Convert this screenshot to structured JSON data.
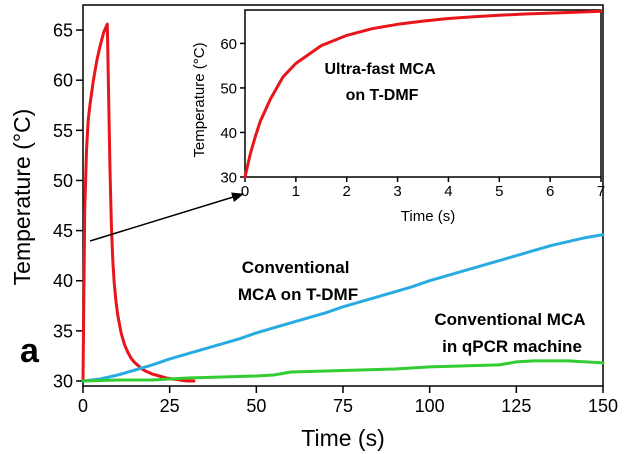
{
  "chart_data": [
    {
      "type": "line",
      "panel_label": "a",
      "xlabel": "Time (s)",
      "ylabel": "Temperature (°C)",
      "xlim": [
        0,
        150
      ],
      "ylim": [
        29.5,
        67.5
      ],
      "xticks": [
        0,
        25,
        50,
        75,
        100,
        125,
        150
      ],
      "yticks": [
        30,
        35,
        40,
        45,
        50,
        55,
        60,
        65
      ],
      "grid": false,
      "legend": "none",
      "annotations": [
        {
          "text_lines": [
            "Conventional",
            "MCA on T-DMF"
          ],
          "color": "#000000"
        },
        {
          "text_lines": [
            "Conventional MCA",
            "in qPCR machine"
          ],
          "color": "#000000"
        }
      ],
      "series": [
        {
          "color": "#e8151b",
          "x": [
            0,
            0.5,
            1,
            1.5,
            2,
            3,
            4,
            5,
            6,
            7,
            7.4,
            7.8,
            8.2,
            8.6,
            9,
            9.5,
            10,
            11,
            12,
            13,
            14,
            15,
            16,
            17,
            18,
            20,
            22,
            24,
            26,
            28,
            30,
            32
          ],
          "y": [
            30,
            47,
            53,
            56,
            57.5,
            60,
            62,
            63.5,
            64.8,
            65.6,
            58,
            51,
            45.5,
            42,
            39.8,
            38,
            36.6,
            34.8,
            33.6,
            32.8,
            32.2,
            31.8,
            31.5,
            31.2,
            31,
            30.7,
            30.5,
            30.3,
            30.2,
            30.1,
            30,
            30
          ]
        },
        {
          "color": "#29abe2",
          "x": [
            0,
            5,
            10,
            15,
            20,
            25,
            30,
            35,
            40,
            45,
            50,
            55,
            60,
            65,
            70,
            75,
            80,
            85,
            90,
            95,
            100,
            105,
            110,
            115,
            120,
            125,
            130,
            135,
            140,
            145,
            150
          ],
          "y": [
            30,
            30.2,
            30.6,
            31.1,
            31.6,
            32.2,
            32.7,
            33.2,
            33.7,
            34.2,
            34.8,
            35.3,
            35.8,
            36.3,
            36.8,
            37.4,
            37.9,
            38.4,
            38.9,
            39.4,
            40,
            40.5,
            41,
            41.5,
            42,
            42.5,
            43,
            43.5,
            43.9,
            44.3,
            44.6
          ]
        },
        {
          "color": "#33cc33",
          "x": [
            0,
            10,
            20,
            30,
            40,
            50,
            55,
            60,
            70,
            80,
            90,
            100,
            110,
            120,
            125,
            130,
            140,
            150
          ],
          "y": [
            30,
            30.1,
            30.1,
            30.3,
            30.4,
            30.5,
            30.6,
            30.9,
            31,
            31.1,
            31.2,
            31.4,
            31.5,
            31.6,
            31.9,
            32,
            32,
            31.8
          ]
        }
      ]
    },
    {
      "type": "line",
      "panel": "inset",
      "xlabel": "Time (s)",
      "ylabel": "Temperature (°C)",
      "xlim": [
        0,
        7
      ],
      "ylim": [
        30,
        67.5
      ],
      "xticks": [
        0,
        1,
        2,
        3,
        4,
        5,
        6,
        7
      ],
      "yticks": [
        30,
        40,
        50,
        60
      ],
      "grid": false,
      "legend": "none",
      "annotations": [
        {
          "text_lines": [
            "Ultra-fast MCA",
            "on T-DMF"
          ],
          "color": "#000000"
        }
      ],
      "series": [
        {
          "color": "#e8151b",
          "x": [
            0,
            0.1,
            0.2,
            0.3,
            0.5,
            0.75,
            1,
            1.5,
            2,
            2.5,
            3,
            3.5,
            4,
            4.5,
            5,
            5.5,
            6,
            6.5,
            7
          ],
          "y": [
            30,
            35,
            39,
            42.5,
            47.5,
            52.5,
            55.5,
            59.5,
            61.8,
            63.3,
            64.3,
            65,
            65.6,
            66,
            66.3,
            66.6,
            66.8,
            67,
            67.2
          ]
        }
      ]
    }
  ]
}
